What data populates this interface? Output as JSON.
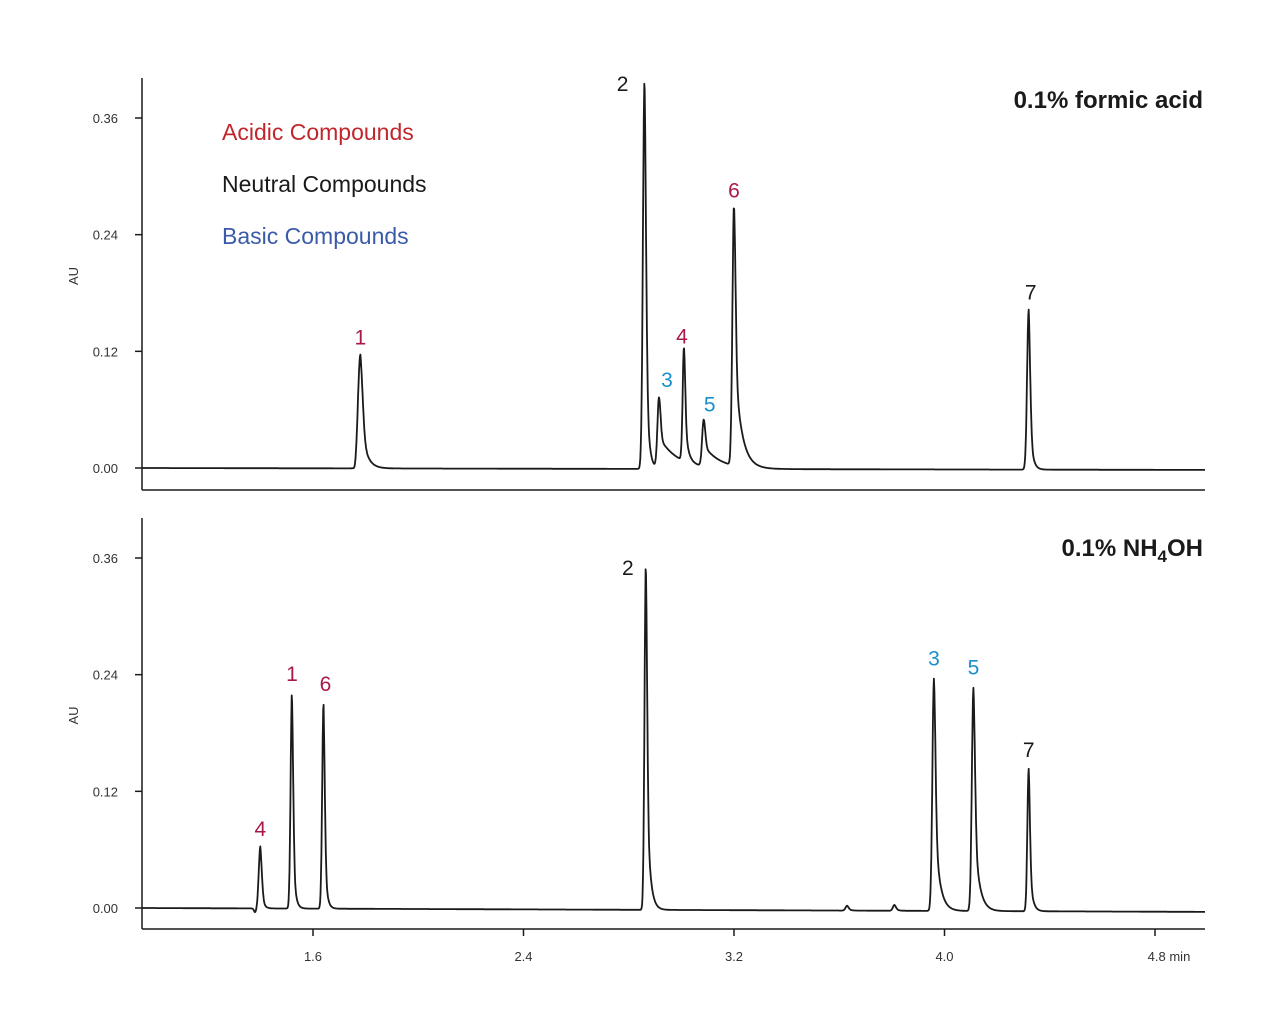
{
  "colors": {
    "acidic": "#A8194A",
    "neutral": "#1a1a1a",
    "basic": "#1A8FCC",
    "legend_acidic": "#C0272D",
    "legend_basic": "#3A5BA9"
  },
  "legend": {
    "acidic": "Acidic Compounds",
    "neutral": "Neutral Compounds",
    "basic": "Basic Compounds"
  },
  "chart_data": [
    {
      "type": "line",
      "title": "0.1% formic acid",
      "ylabel": "AU",
      "xlabel": "min",
      "xlim": [
        0.9,
        5.0
      ],
      "ylim": [
        -0.02,
        0.4
      ],
      "yticks": [
        "0.00",
        "0.12",
        "0.24",
        "0.36"
      ],
      "baseline_drift": -0.002,
      "peaks": [
        {
          "label": "1",
          "class": "acidic",
          "rt": 1.78,
          "height": 0.117
        },
        {
          "label": "2",
          "class": "neutral",
          "rt": 2.86,
          "height": 0.402
        },
        {
          "label": "3",
          "class": "basic",
          "rt": 2.915,
          "height": 0.073
        },
        {
          "label": "4",
          "class": "acidic",
          "rt": 3.01,
          "height": 0.118
        },
        {
          "label": "5",
          "class": "basic",
          "rt": 3.085,
          "height": 0.048
        },
        {
          "label": "6",
          "class": "acidic",
          "rt": 3.2,
          "height": 0.268
        },
        {
          "label": "7",
          "class": "neutral",
          "rt": 4.32,
          "height": 0.165
        }
      ]
    },
    {
      "type": "line",
      "title": "0.1% NH4OH",
      "ylabel": "AU",
      "xlabel": "min",
      "xlim": [
        0.9,
        5.0
      ],
      "ylim": [
        -0.02,
        0.4
      ],
      "yticks": [
        "0.00",
        "0.12",
        "0.24",
        "0.36"
      ],
      "xticks": [
        "1.6",
        "2.4",
        "3.2",
        "4.0",
        "4.8 min"
      ],
      "baseline_drift": -0.004,
      "peaks": [
        {
          "label": "4",
          "class": "acidic",
          "rt": 1.4,
          "height": 0.064
        },
        {
          "label": "1",
          "class": "acidic",
          "rt": 1.52,
          "height": 0.223
        },
        {
          "label": "6",
          "class": "acidic",
          "rt": 1.64,
          "height": 0.213
        },
        {
          "label": "2",
          "class": "neutral",
          "rt": 2.865,
          "height": 0.357
        },
        {
          "label": "3",
          "class": "basic",
          "rt": 3.96,
          "height": 0.239
        },
        {
          "label": "5",
          "class": "basic",
          "rt": 4.11,
          "height": 0.23
        },
        {
          "label": "7",
          "class": "neutral",
          "rt": 4.32,
          "height": 0.147
        }
      ],
      "minor_peaks": [
        {
          "rt": 3.63,
          "height": 0.005
        },
        {
          "rt": 3.81,
          "height": 0.006
        }
      ]
    }
  ]
}
